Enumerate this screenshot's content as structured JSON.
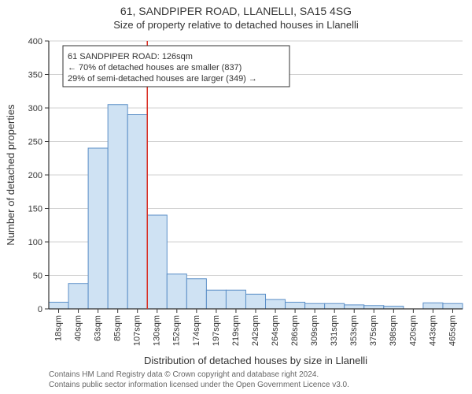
{
  "title_line1": "61, SANDPIPER ROAD, LLANELLI, SA15 4SG",
  "title_line2": "Size of property relative to detached houses in Llanelli",
  "chart": {
    "type": "histogram",
    "ylabel": "Number of detached properties",
    "xlabel": "Distribution of detached houses by size in Llanelli",
    "ylim": [
      0,
      400
    ],
    "ytick_step": 50,
    "yticks": [
      0,
      50,
      100,
      150,
      200,
      250,
      300,
      350,
      400
    ],
    "x_categories": [
      "18sqm",
      "40sqm",
      "63sqm",
      "85sqm",
      "107sqm",
      "130sqm",
      "152sqm",
      "174sqm",
      "197sqm",
      "219sqm",
      "242sqm",
      "264sqm",
      "286sqm",
      "309sqm",
      "331sqm",
      "353sqm",
      "375sqm",
      "398sqm",
      "420sqm",
      "443sqm",
      "465sqm"
    ],
    "values": [
      10,
      38,
      240,
      305,
      290,
      140,
      52,
      45,
      28,
      28,
      22,
      14,
      10,
      8,
      8,
      6,
      5,
      4,
      0,
      9,
      8
    ],
    "bar_fill": "#cfe2f3",
    "bar_stroke": "#5b8fc7",
    "bar_stroke_width": 1,
    "marker_line_x_category_index": 5,
    "marker_line_color": "#d93025",
    "marker_line_width": 1.5,
    "axis_color": "#333333",
    "grid_color": "#d0d0d0",
    "background": "#ffffff",
    "tick_font_size": 11,
    "label_font_size": 13
  },
  "legend": {
    "lines": [
      "61 SANDPIPER ROAD: 126sqm",
      "← 70% of detached houses are smaller (837)",
      "29% of semi-detached houses are larger (349) →"
    ],
    "border_color": "#333333",
    "background": "#ffffff",
    "font_size": 11
  },
  "footer": {
    "line1": "Contains HM Land Registry data © Crown copyright and database right 2024.",
    "line2": "Contains public sector information licensed under the Open Government Licence v3.0."
  }
}
